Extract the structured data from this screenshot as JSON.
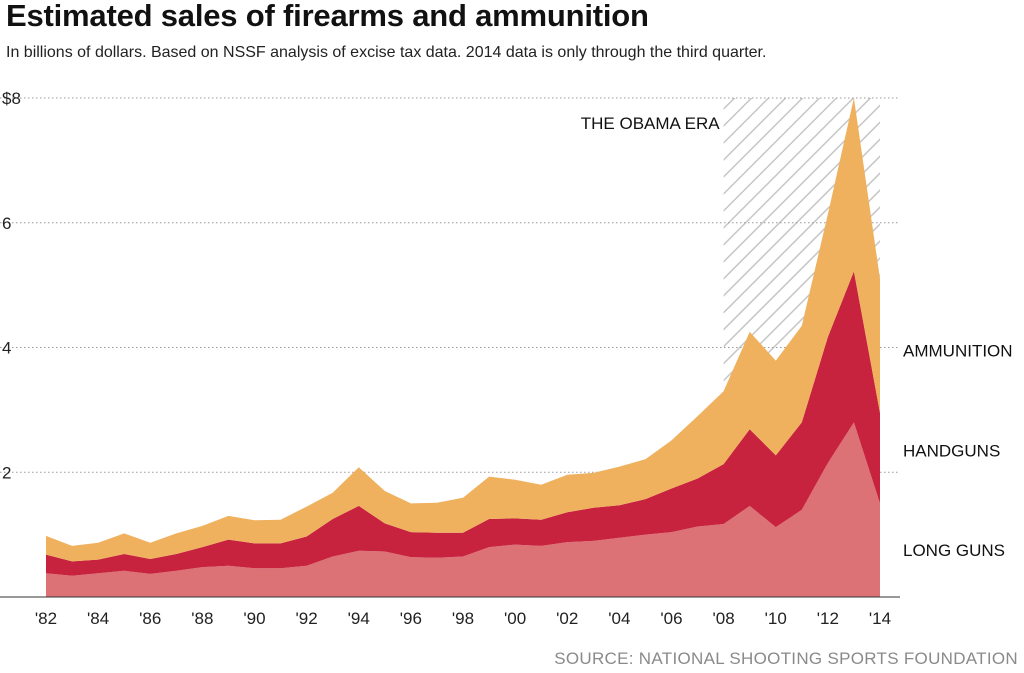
{
  "title": "Estimated sales of firearms and ammunition",
  "subtitle": "In billions of dollars. Based on NSSF analysis of excise tax data. 2014 data is only through the third quarter.",
  "source": "SOURCE: NATIONAL SHOOTING SPORTS FOUNDATION",
  "colors": {
    "long_guns": "#dc7176",
    "handguns": "#c7223e",
    "ammunition": "#efb15e",
    "grid": "#9a9a9a",
    "hatch": "#c6c6c6"
  },
  "chart_data": {
    "type": "area",
    "stacked": true,
    "x": [
      1982,
      1983,
      1984,
      1985,
      1986,
      1987,
      1988,
      1989,
      1990,
      1991,
      1992,
      1993,
      1994,
      1995,
      1996,
      1997,
      1998,
      1999,
      2000,
      2001,
      2002,
      2003,
      2004,
      2005,
      2006,
      2007,
      2008,
      2009,
      2010,
      2011,
      2012,
      2013,
      2014
    ],
    "series": [
      {
        "name": "LONG GUNS",
        "values": [
          0.38,
          0.34,
          0.38,
          0.42,
          0.37,
          0.42,
          0.48,
          0.5,
          0.46,
          0.46,
          0.5,
          0.65,
          0.74,
          0.73,
          0.64,
          0.63,
          0.65,
          0.8,
          0.84,
          0.82,
          0.88,
          0.9,
          0.95,
          1.0,
          1.04,
          1.13,
          1.17,
          1.46,
          1.12,
          1.4,
          2.15,
          2.8,
          1.5
        ]
      },
      {
        "name": "HANDGUNS",
        "values": [
          0.3,
          0.23,
          0.22,
          0.27,
          0.24,
          0.27,
          0.32,
          0.42,
          0.4,
          0.4,
          0.47,
          0.6,
          0.72,
          0.45,
          0.4,
          0.4,
          0.38,
          0.45,
          0.42,
          0.42,
          0.48,
          0.53,
          0.52,
          0.57,
          0.7,
          0.77,
          0.96,
          1.23,
          1.15,
          1.4,
          2.02,
          2.42,
          1.45
        ]
      },
      {
        "name": "AMMUNITION",
        "values": [
          0.3,
          0.25,
          0.27,
          0.33,
          0.26,
          0.33,
          0.34,
          0.38,
          0.37,
          0.38,
          0.48,
          0.42,
          0.62,
          0.52,
          0.46,
          0.48,
          0.56,
          0.68,
          0.62,
          0.56,
          0.6,
          0.56,
          0.62,
          0.64,
          0.77,
          1.0,
          1.17,
          1.56,
          1.52,
          1.55,
          1.97,
          2.78,
          2.15
        ]
      }
    ],
    "ylim": [
      0,
      8
    ],
    "yticks": [
      {
        "value": 0,
        "label": ""
      },
      {
        "value": 2,
        "label": "2"
      },
      {
        "value": 4,
        "label": "4"
      },
      {
        "value": 6,
        "label": "6"
      },
      {
        "value": 8,
        "label": "$8"
      }
    ],
    "xticks": [
      {
        "value": 1982,
        "label": "'82"
      },
      {
        "value": 1984,
        "label": "'84"
      },
      {
        "value": 1986,
        "label": "'86"
      },
      {
        "value": 1988,
        "label": "'88"
      },
      {
        "value": 1990,
        "label": "'90"
      },
      {
        "value": 1992,
        "label": "'92"
      },
      {
        "value": 1994,
        "label": "'94"
      },
      {
        "value": 1996,
        "label": "'96"
      },
      {
        "value": 1998,
        "label": "'98"
      },
      {
        "value": 2000,
        "label": "'00"
      },
      {
        "value": 2002,
        "label": "'02"
      },
      {
        "value": 2004,
        "label": "'04"
      },
      {
        "value": 2006,
        "label": "'06"
      },
      {
        "value": 2008,
        "label": "'08"
      },
      {
        "value": 2010,
        "label": "'10"
      },
      {
        "value": 2012,
        "label": "'12"
      },
      {
        "value": 2014,
        "label": "'14"
      }
    ],
    "grid": true,
    "annotation": {
      "label": "THE OBAMA ERA",
      "x_start": 2008,
      "x_end": 2014
    }
  }
}
